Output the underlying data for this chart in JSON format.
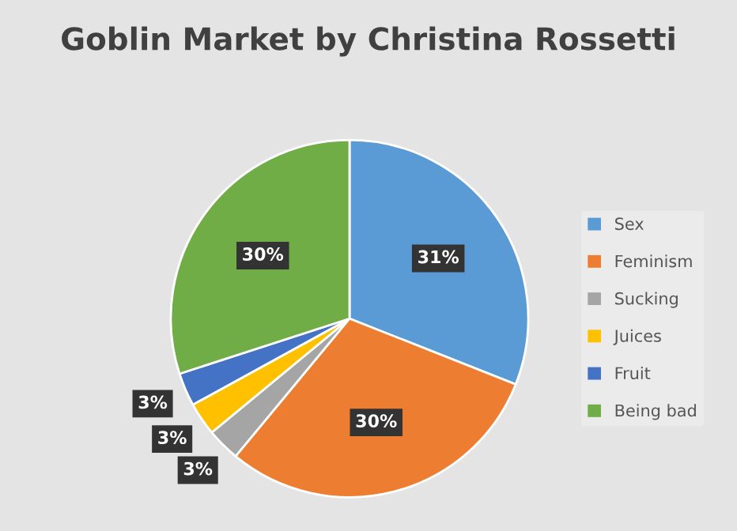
{
  "chart_data": {
    "type": "pie",
    "title": "Goblin Market by Christina Rossetti",
    "categories": [
      "Sex",
      "Feminism",
      "Sucking",
      "Juices",
      "Fruit",
      "Being bad"
    ],
    "values": [
      31,
      30,
      3,
      3,
      3,
      30
    ],
    "colors": [
      "#5b9bd5",
      "#ed7d31",
      "#a5a5a5",
      "#ffc000",
      "#4472c4",
      "#70ad47"
    ],
    "value_labels": [
      "31%",
      "30%",
      "3%",
      "3%",
      "3%",
      "30%"
    ],
    "legend": "right"
  }
}
